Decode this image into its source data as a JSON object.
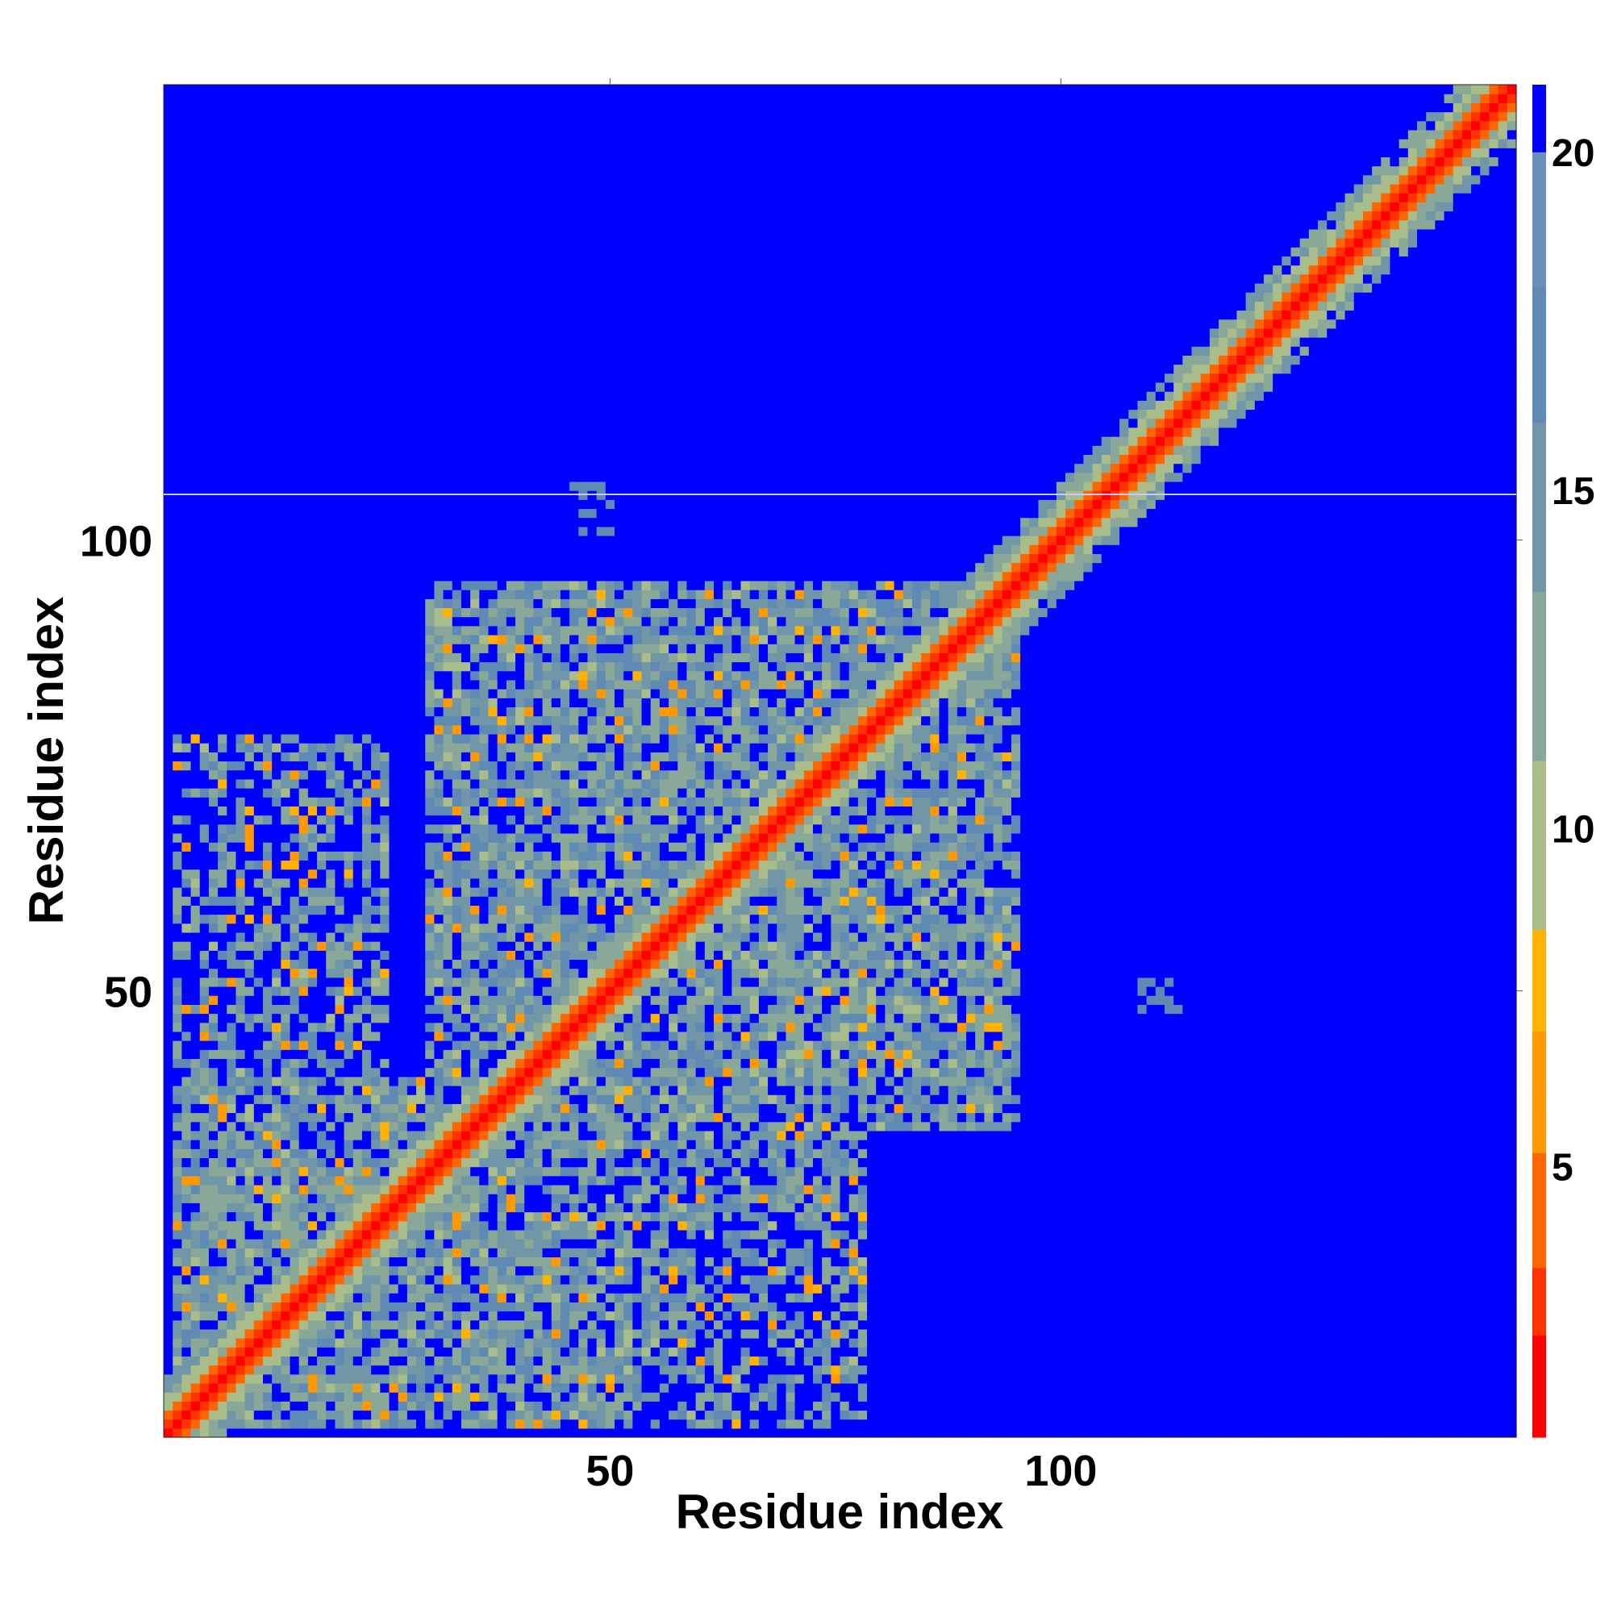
{
  "chart_data": {
    "type": "heatmap",
    "title": "",
    "xlabel": "Residue index",
    "ylabel": "Residue index",
    "n_residues": 150,
    "xlim": [
      1,
      150
    ],
    "ylim": [
      1,
      150
    ],
    "x_ticks": [
      50,
      100
    ],
    "y_ticks": [
      50,
      100
    ],
    "x_tick_labels": [
      "50",
      "100"
    ],
    "y_tick_labels": [
      "50",
      "100"
    ],
    "colorbar": {
      "min": 1,
      "max": 21,
      "ticks": [
        5,
        10,
        15,
        20
      ],
      "tick_labels": [
        "5",
        "10",
        "15",
        "20"
      ],
      "colors": [
        "#ff0000",
        "#ff3300",
        "#ff6600",
        "#ff9900",
        "#ffb300",
        "#a8bd8a",
        "#8aa898",
        "#7096a8",
        "#5e8ab4",
        "#6a90b8",
        "#0000ff"
      ]
    },
    "value_description": "distance map; saturated blue at or above 20",
    "regions": [
      {
        "name": "diagonal-band",
        "i_range": [
          1,
          150
        ],
        "values": "<5 on diagonal, 8-15 within 3-6 residues"
      },
      {
        "name": "core-domain",
        "x_range": [
          30,
          95
        ],
        "y_range": [
          35,
          95
        ],
        "values": "10-18 with scattered contacts <8"
      },
      {
        "name": "n-terminal-domain",
        "x_range": [
          2,
          75
        ],
        "y_range": [
          2,
          45
        ],
        "values": "10-18 with scattered contacts <8"
      },
      {
        "name": "left-lobe",
        "x_range": [
          2,
          25
        ],
        "y_range": [
          40,
          78
        ],
        "values": "12-18"
      },
      {
        "name": "c-terminal-band",
        "x_range": [
          95,
          150
        ],
        "y_range": [
          95,
          150
        ],
        "values": "12-18 near diagonal"
      }
    ]
  }
}
